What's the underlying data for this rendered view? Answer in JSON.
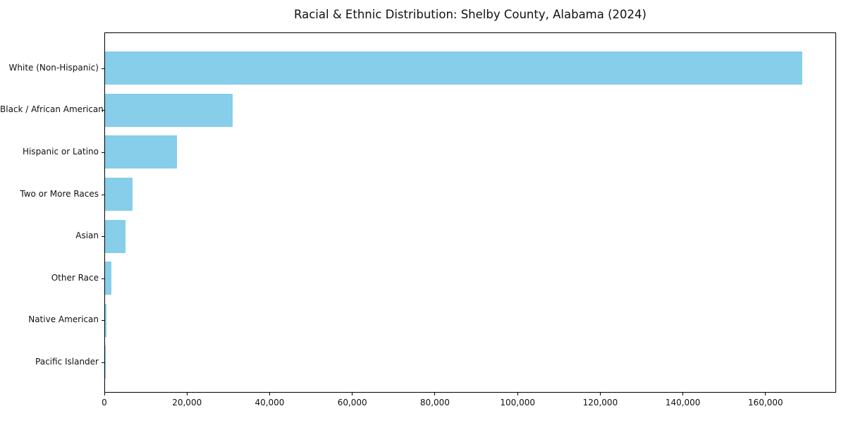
{
  "chart_data": {
    "type": "bar",
    "orientation": "horizontal",
    "title": "Racial & Ethnic Distribution: Shelby County, Alabama (2024)",
    "xlabel": "",
    "ylabel": "",
    "categories": [
      "White (Non-Hispanic)",
      "Black / African American",
      "Hispanic or Latino",
      "Two or More Races",
      "Asian",
      "Other Race",
      "Native American",
      "Pacific Islander"
    ],
    "values": [
      168650,
      30900,
      17450,
      6700,
      5000,
      1500,
      300,
      100
    ],
    "xlim": [
      0,
      177082
    ],
    "x_ticks": [
      {
        "value": 0,
        "label": "0"
      },
      {
        "value": 20000,
        "label": "20,000"
      },
      {
        "value": 40000,
        "label": "40,000"
      },
      {
        "value": 60000,
        "label": "60,000"
      },
      {
        "value": 80000,
        "label": "80,000"
      },
      {
        "value": 100000,
        "label": "100,000"
      },
      {
        "value": 120000,
        "label": "120,000"
      },
      {
        "value": 140000,
        "label": "140,000"
      },
      {
        "value": 160000,
        "label": "160,000"
      }
    ],
    "bar_color": "#87CEEB",
    "axis_color": "#000000",
    "text_color": "#111111",
    "background_color": "#ffffff",
    "grid": false,
    "legend": false
  }
}
